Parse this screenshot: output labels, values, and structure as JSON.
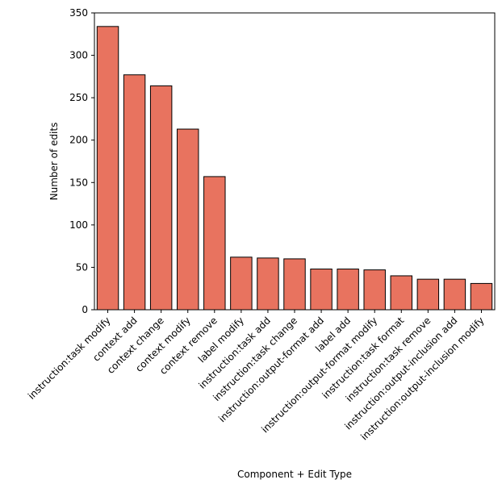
{
  "chart_data": {
    "type": "bar",
    "title": "",
    "xlabel": "Component + Edit Type",
    "ylabel": "Number of edits",
    "ylim": [
      0,
      350
    ],
    "yticks": [
      0,
      50,
      100,
      150,
      200,
      250,
      300,
      350
    ],
    "grid": false,
    "bar_color": "#e8735f",
    "categories": [
      "instruction:task modify",
      "context add",
      "context change",
      "context modify",
      "context remove",
      "label modify",
      "instruction:task add",
      "instruction:task change",
      "instruction:output-format add",
      "label add",
      "instruction:output-format modify",
      "instruction:task format",
      "instruction:task remove",
      "instruction:output-inclusion add",
      "instruction:output-inclusion modify"
    ],
    "values": [
      334,
      277,
      264,
      213,
      157,
      62,
      61,
      60,
      48,
      48,
      47,
      40,
      36,
      36,
      31
    ]
  }
}
